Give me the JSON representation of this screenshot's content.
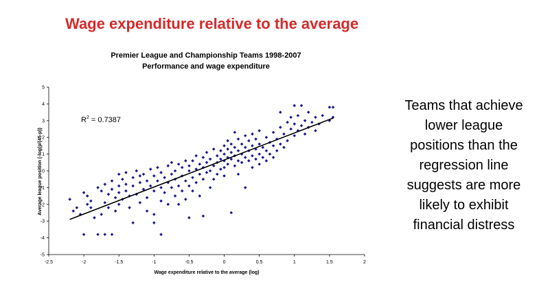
{
  "slide": {
    "title": "Wage expenditure relative to the average",
    "side_text_lines": [
      "Teams that achieve",
      "lower league",
      "positions than the",
      "regression line",
      "suggests are more",
      "likely to exhibit",
      "financial distress"
    ]
  },
  "colors": {
    "title": "#d42a2a",
    "points": "#1a1a8c",
    "regression_line": "#000000"
  },
  "chart_data": {
    "type": "scatter",
    "title_lines": [
      "Premier League and Championship Teams 1998-2007",
      "Performance and wage expenditure"
    ],
    "xlabel": "Wage expenditure relative to the average (log)",
    "ylabel": "Average league position (-log(p/(45-p))",
    "xlim": [
      -2.5,
      2
    ],
    "ylim": [
      -5,
      5
    ],
    "xticks": [
      "-2.5",
      "-2",
      "-1.5",
      "-1",
      "-0.5",
      "0",
      "0.5",
      "1",
      "1.5",
      "2"
    ],
    "yticks": [
      "-5",
      "-4",
      "-3",
      "-2",
      "-1",
      "0",
      "1",
      "2",
      "3",
      "4",
      "5"
    ],
    "annotation": {
      "base": "R",
      "sup": "2",
      "rest": " = 0.7387"
    },
    "regression": {
      "x": [
        -2.2,
        1.55
      ],
      "y": [
        -2.9,
        3.15
      ]
    },
    "grid": false,
    "legend": "none",
    "points": [
      [
        -2.2,
        -1.7
      ],
      [
        -2.15,
        -2.4
      ],
      [
        -2.1,
        -2.2
      ],
      [
        -2.05,
        -2.6
      ],
      [
        -2.0,
        -3.8
      ],
      [
        -2.0,
        -1.3
      ],
      [
        -1.95,
        -2.0
      ],
      [
        -1.95,
        -1.5
      ],
      [
        -1.9,
        -1.8
      ],
      [
        -1.9,
        -2.2
      ],
      [
        -1.85,
        -2.8
      ],
      [
        -1.8,
        -3.8
      ],
      [
        -1.8,
        -1.0
      ],
      [
        -1.75,
        -1.2
      ],
      [
        -1.75,
        -2.6
      ],
      [
        -1.7,
        -3.8
      ],
      [
        -1.7,
        -1.9
      ],
      [
        -1.7,
        -0.8
      ],
      [
        -1.65,
        -1.4
      ],
      [
        -1.65,
        -2.2
      ],
      [
        -1.6,
        -0.6
      ],
      [
        -1.6,
        -1.1
      ],
      [
        -1.6,
        -3.8
      ],
      [
        -1.55,
        -1.6
      ],
      [
        -1.55,
        -2.4
      ],
      [
        -1.5,
        -0.2
      ],
      [
        -1.5,
        -0.9
      ],
      [
        -1.5,
        -1.3
      ],
      [
        -1.5,
        -2.0
      ],
      [
        -1.45,
        -0.5
      ],
      [
        -1.45,
        -1.7
      ],
      [
        -1.4,
        -0.1
      ],
      [
        -1.4,
        -0.8
      ],
      [
        -1.4,
        -1.2
      ],
      [
        -1.35,
        -1.5
      ],
      [
        -1.35,
        -2.2
      ],
      [
        -1.3,
        -0.4
      ],
      [
        -1.3,
        -0.9
      ],
      [
        -1.3,
        -3.1
      ],
      [
        -1.25,
        0.0
      ],
      [
        -1.25,
        -1.4
      ],
      [
        -1.2,
        -0.3
      ],
      [
        -1.2,
        -0.7
      ],
      [
        -1.2,
        -1.9
      ],
      [
        -1.15,
        -1.1
      ],
      [
        -1.15,
        -0.2
      ],
      [
        -1.1,
        -0.6
      ],
      [
        -1.1,
        -1.6
      ],
      [
        -1.1,
        -2.4
      ],
      [
        -1.05,
        0.1
      ],
      [
        -1.05,
        -0.9
      ],
      [
        -1.0,
        -0.3
      ],
      [
        -1.0,
        -1.2
      ],
      [
        -1.0,
        -2.6
      ],
      [
        -1.0,
        -3.1
      ],
      [
        -0.95,
        0.2
      ],
      [
        -0.95,
        -0.6
      ],
      [
        -0.9,
        -1.0
      ],
      [
        -0.9,
        -0.1
      ],
      [
        -0.9,
        -1.8
      ],
      [
        -0.9,
        -3.8
      ],
      [
        -0.85,
        -0.4
      ],
      [
        -0.85,
        -1.3
      ],
      [
        -0.8,
        0.3
      ],
      [
        -0.8,
        -0.7
      ],
      [
        -0.8,
        -2.0
      ],
      [
        -0.75,
        0.5
      ],
      [
        -0.75,
        -0.2
      ],
      [
        -0.75,
        -1.0
      ],
      [
        -0.7,
        0.0
      ],
      [
        -0.7,
        -0.5
      ],
      [
        -0.7,
        -1.5
      ],
      [
        -0.65,
        0.4
      ],
      [
        -0.65,
        -0.9
      ],
      [
        -0.65,
        -2.0
      ],
      [
        -0.6,
        0.2
      ],
      [
        -0.6,
        -0.3
      ],
      [
        -0.6,
        -1.2
      ],
      [
        -0.55,
        0.6
      ],
      [
        -0.55,
        -0.6
      ],
      [
        -0.55,
        -1.7
      ],
      [
        -0.5,
        0.0
      ],
      [
        -0.5,
        0.3
      ],
      [
        -0.5,
        -0.9
      ],
      [
        -0.5,
        -2.8
      ],
      [
        -0.45,
        0.6
      ],
      [
        -0.45,
        -0.4
      ],
      [
        -0.45,
        -1.2
      ],
      [
        -0.4,
        0.9
      ],
      [
        -0.4,
        0.1
      ],
      [
        -0.4,
        -0.7
      ],
      [
        -0.35,
        0.4
      ],
      [
        -0.35,
        -0.2
      ],
      [
        -0.35,
        -1.5
      ],
      [
        -0.3,
        0.8
      ],
      [
        -0.3,
        0.2
      ],
      [
        -0.3,
        -0.5
      ],
      [
        -0.3,
        -2.7
      ],
      [
        -0.25,
        1.1
      ],
      [
        -0.25,
        0.5
      ],
      [
        -0.25,
        -0.1
      ],
      [
        -0.2,
        0.7
      ],
      [
        -0.2,
        0.0
      ],
      [
        -0.2,
        -1.0
      ],
      [
        -0.15,
        1.3
      ],
      [
        -0.15,
        0.3
      ],
      [
        -0.15,
        -0.5
      ],
      [
        -0.1,
        0.9
      ],
      [
        -0.1,
        0.5
      ],
      [
        -0.1,
        -0.2
      ],
      [
        -0.05,
        1.2
      ],
      [
        -0.05,
        0.7
      ],
      [
        -0.05,
        0.1
      ],
      [
        0.0,
        1.5
      ],
      [
        0.0,
        1.0
      ],
      [
        0.0,
        0.6
      ],
      [
        0.0,
        0.2
      ],
      [
        0.0,
        -0.3
      ],
      [
        0.05,
        1.8
      ],
      [
        0.05,
        1.3
      ],
      [
        0.05,
        0.8
      ],
      [
        0.05,
        0.4
      ],
      [
        0.1,
        1.6
      ],
      [
        0.1,
        1.1
      ],
      [
        0.1,
        0.7
      ],
      [
        0.1,
        -2.5
      ],
      [
        0.15,
        2.3
      ],
      [
        0.15,
        1.4
      ],
      [
        0.15,
        0.9
      ],
      [
        0.15,
        0.3
      ],
      [
        0.2,
        1.9
      ],
      [
        0.2,
        1.2
      ],
      [
        0.2,
        0.6
      ],
      [
        0.2,
        -0.2
      ],
      [
        0.25,
        1.6
      ],
      [
        0.25,
        1.0
      ],
      [
        0.25,
        0.5
      ],
      [
        0.3,
        2.1
      ],
      [
        0.3,
        1.4
      ],
      [
        0.3,
        0.8
      ],
      [
        0.3,
        -1.0
      ],
      [
        0.35,
        1.8
      ],
      [
        0.35,
        1.2
      ],
      [
        0.35,
        0.6
      ],
      [
        0.4,
        2.2
      ],
      [
        0.4,
        1.5
      ],
      [
        0.4,
        0.9
      ],
      [
        0.4,
        0.2
      ],
      [
        0.45,
        1.9
      ],
      [
        0.45,
        1.3
      ],
      [
        0.45,
        0.7
      ],
      [
        0.5,
        2.4
      ],
      [
        0.5,
        1.6
      ],
      [
        0.5,
        1.0
      ],
      [
        0.5,
        0.4
      ],
      [
        0.55,
        1.4
      ],
      [
        0.55,
        0.8
      ],
      [
        0.6,
        2.0
      ],
      [
        0.6,
        1.2
      ],
      [
        0.6,
        0.6
      ],
      [
        0.65,
        1.7
      ],
      [
        0.65,
        1.0
      ],
      [
        0.7,
        2.3
      ],
      [
        0.7,
        1.5
      ],
      [
        0.7,
        0.8
      ],
      [
        0.75,
        1.9
      ],
      [
        0.75,
        1.2
      ],
      [
        0.8,
        2.6
      ],
      [
        0.8,
        3.5
      ],
      [
        0.8,
        1.6
      ],
      [
        0.85,
        2.2
      ],
      [
        0.85,
        1.4
      ],
      [
        0.9,
        2.9
      ],
      [
        0.9,
        1.8
      ],
      [
        0.95,
        2.5
      ],
      [
        0.95,
        3.2
      ],
      [
        1.0,
        2.1
      ],
      [
        1.0,
        2.8
      ],
      [
        1.0,
        3.9
      ],
      [
        1.05,
        2.4
      ],
      [
        1.05,
        3.3
      ],
      [
        1.1,
        2.7
      ],
      [
        1.1,
        3.9
      ],
      [
        1.15,
        2.2
      ],
      [
        1.15,
        3.0
      ],
      [
        1.2,
        2.6
      ],
      [
        1.2,
        3.5
      ],
      [
        1.25,
        2.9
      ],
      [
        1.3,
        2.4
      ],
      [
        1.3,
        3.2
      ],
      [
        1.35,
        2.8
      ],
      [
        1.4,
        3.3
      ],
      [
        1.5,
        3.8
      ],
      [
        1.5,
        3.0
      ],
      [
        1.55,
        3.8
      ],
      [
        1.55,
        3.2
      ]
    ]
  }
}
